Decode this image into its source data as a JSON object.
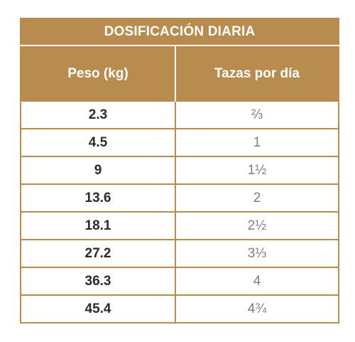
{
  "table": {
    "title": "DOSIFICACIÓN DIARIA",
    "headers": {
      "weight": "Peso (kg)",
      "cups": "Tazas por día"
    },
    "rows": [
      {
        "weight": "2.3",
        "cups": "⅔"
      },
      {
        "weight": "4.5",
        "cups": "1"
      },
      {
        "weight": "9",
        "cups": "1½"
      },
      {
        "weight": "13.6",
        "cups": "2"
      },
      {
        "weight": "18.1",
        "cups": "2½"
      },
      {
        "weight": "27.2",
        "cups": "3⅓"
      },
      {
        "weight": "36.3",
        "cups": "4"
      },
      {
        "weight": "45.4",
        "cups": "4¾"
      }
    ]
  },
  "colors": {
    "header_bg": "#b78c4e",
    "header_text": "#ffffff",
    "border": "#b78c4e",
    "weight_text": "#2b2b2b",
    "cups_text": "#7d7d7d"
  }
}
